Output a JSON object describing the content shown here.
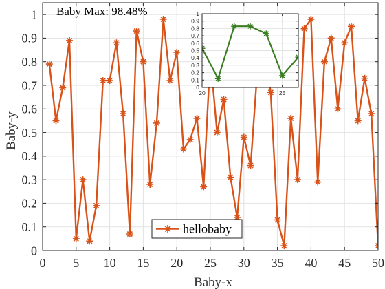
{
  "chart_data": [
    {
      "type": "line",
      "annotation": "Baby Max: 98.48%",
      "xlabel": "Baby-x",
      "ylabel": "Baby-y",
      "xlim": [
        0,
        50
      ],
      "ylim": [
        0,
        1.05
      ],
      "xticks": [
        "0",
        "5",
        "10",
        "15",
        "20",
        "25",
        "30",
        "35",
        "40",
        "45",
        "50"
      ],
      "yticks": [
        "0",
        "0.1",
        "0.2",
        "0.3",
        "0.4",
        "0.5",
        "0.6",
        "0.7",
        "0.8",
        "0.9",
        "1"
      ],
      "grid": true,
      "legend": {
        "location": "bottom-center",
        "entries": [
          "hellobaby"
        ]
      },
      "colors": {
        "series": "#D95319"
      },
      "series": [
        {
          "name": "hellobaby",
          "x": [
            1,
            2,
            3,
            4,
            5,
            6,
            7,
            8,
            9,
            10,
            11,
            12,
            13,
            14,
            15,
            16,
            17,
            18,
            19,
            20,
            21,
            22,
            23,
            24,
            25,
            26,
            27,
            28,
            29,
            30,
            31,
            32,
            33,
            34,
            35,
            36,
            37,
            38,
            39,
            40,
            41,
            42,
            43,
            44,
            45,
            46,
            47,
            48,
            49,
            50
          ],
          "y": [
            0.79,
            0.55,
            0.69,
            0.89,
            0.05,
            0.3,
            0.04,
            0.19,
            0.72,
            0.72,
            0.88,
            0.58,
            0.07,
            0.93,
            0.8,
            0.28,
            0.54,
            0.98,
            0.72,
            0.84,
            0.43,
            0.47,
            0.56,
            0.27,
            0.82,
            0.5,
            0.64,
            0.31,
            0.14,
            0.48,
            0.36,
            0.76,
            0.87,
            0.67,
            0.13,
            0.02,
            0.56,
            0.3,
            0.94,
            0.98,
            0.29,
            0.8,
            0.9,
            0.6,
            0.88,
            0.95,
            0.55,
            0.73,
            0.58,
            0.02
          ]
        }
      ]
    },
    {
      "type": "line",
      "xlim": [
        20,
        26
      ],
      "ylim": [
        0,
        1
      ],
      "xticks": [
        "20",
        "25"
      ],
      "yticks": [
        "0",
        "0.1",
        "0.2",
        "0.3",
        "0.4",
        "0.5",
        "0.6",
        "0.7",
        "0.8",
        "0.9",
        "1"
      ],
      "grid": true,
      "colors": {
        "series": "#3A7D22"
      },
      "series": [
        {
          "x": [
            19.5,
            20,
            21,
            22,
            23,
            24,
            25,
            26
          ],
          "y": [
            0.45,
            0.53,
            0.12,
            0.83,
            0.83,
            0.73,
            0.16,
            0.41
          ]
        }
      ]
    }
  ]
}
